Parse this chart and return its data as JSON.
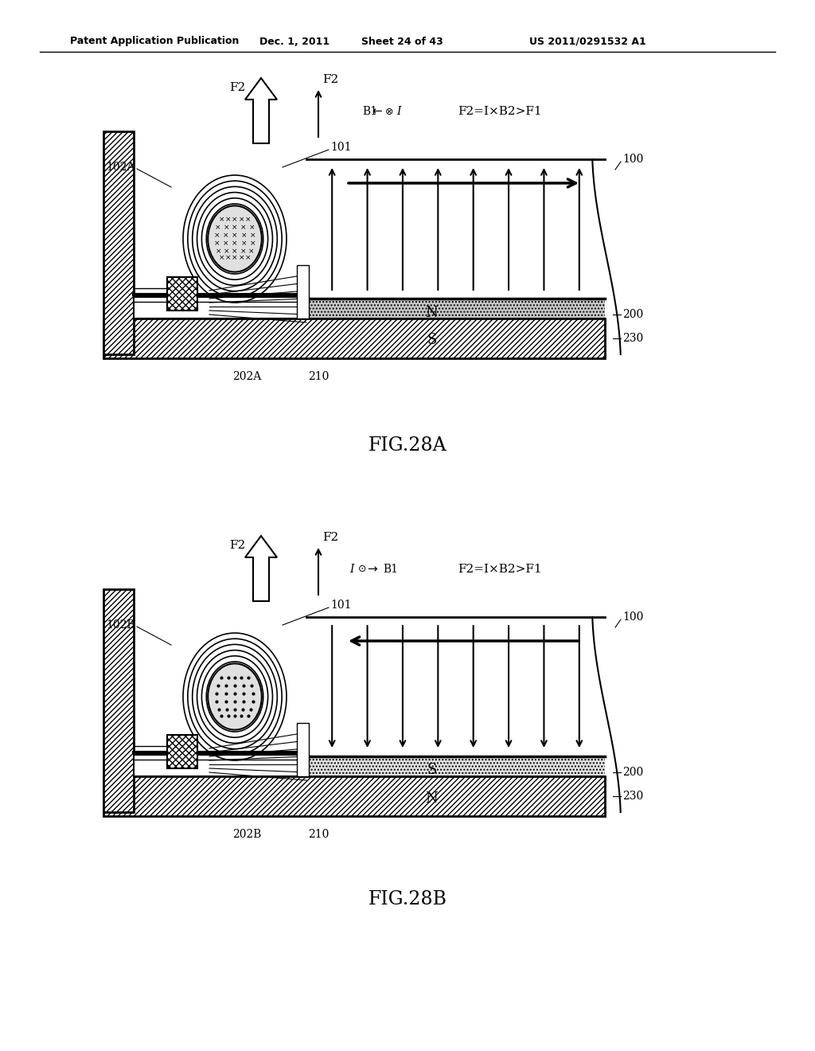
{
  "title_header": "Patent Application Publication",
  "date_header": "Dec. 1, 2011",
  "sheet_header": "Sheet 24 of 43",
  "patent_header": "US 2011/0291532 A1",
  "fig_a_label": "FIG.28A",
  "fig_b_label": "FIG.28B",
  "background_color": "#ffffff",
  "line_color": "#000000",
  "label_eq_A": "F2=I×B2>F1",
  "label_eq_B": "F2=I×B2>F1",
  "dot_fill": "#d8d8d8",
  "mag_N_fill": "#c8c8c8",
  "mag_S_fill": "#e0e0e0"
}
